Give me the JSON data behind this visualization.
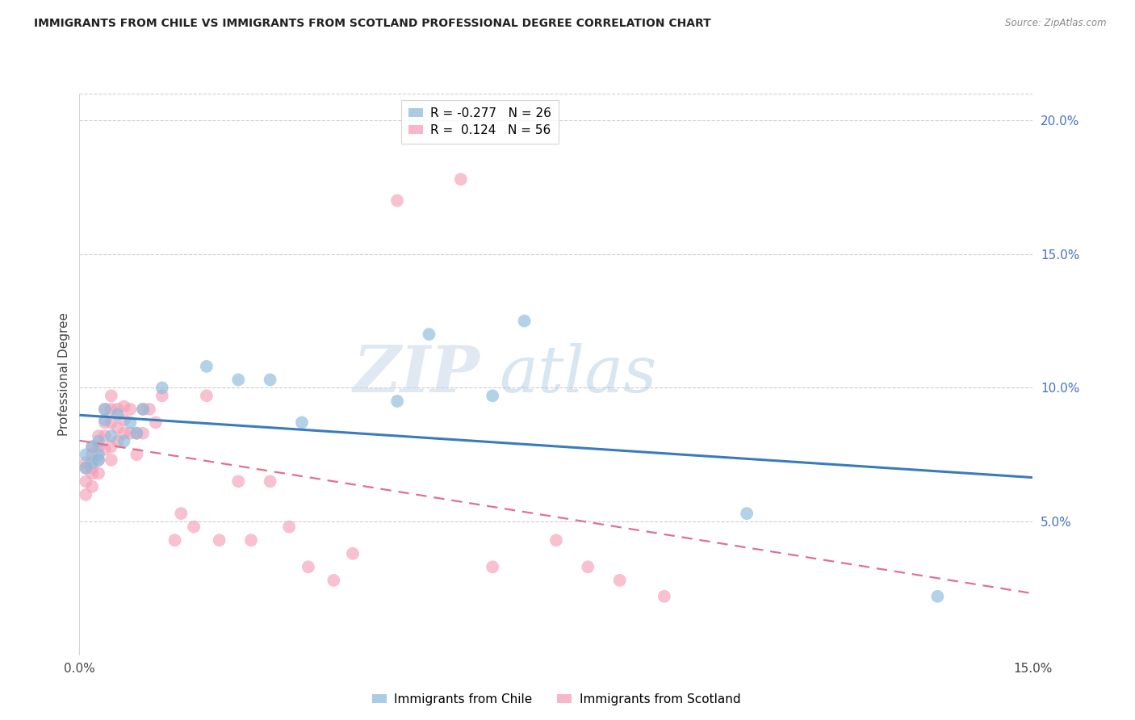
{
  "title": "IMMIGRANTS FROM CHILE VS IMMIGRANTS FROM SCOTLAND PROFESSIONAL DEGREE CORRELATION CHART",
  "source": "Source: ZipAtlas.com",
  "ylabel": "Professional Degree",
  "legend_chile": "Immigrants from Chile",
  "legend_scotland": "Immigrants from Scotland",
  "chile_R": -0.277,
  "chile_N": 26,
  "scotland_R": 0.124,
  "scotland_N": 56,
  "xlim": [
    0,
    0.15
  ],
  "ylim": [
    0,
    0.21
  ],
  "right_yticks": [
    0.05,
    0.1,
    0.15,
    0.2
  ],
  "right_yticklabels": [
    "5.0%",
    "10.0%",
    "15.0%",
    "20.0%"
  ],
  "chile_color": "#8abbdb",
  "scotland_color": "#f4a0b8",
  "chile_line_color": "#3a7bbf",
  "scotland_line_color": "#e07090",
  "watermark_zip": "ZIP",
  "watermark_atlas": "atlas",
  "chile_x": [
    0.001,
    0.001,
    0.002,
    0.002,
    0.003,
    0.003,
    0.003,
    0.004,
    0.004,
    0.005,
    0.006,
    0.007,
    0.008,
    0.009,
    0.01,
    0.013,
    0.02,
    0.025,
    0.03,
    0.035,
    0.05,
    0.055,
    0.065,
    0.07,
    0.105,
    0.135
  ],
  "chile_y": [
    0.07,
    0.075,
    0.072,
    0.078,
    0.075,
    0.08,
    0.073,
    0.088,
    0.092,
    0.082,
    0.09,
    0.08,
    0.087,
    0.083,
    0.092,
    0.1,
    0.108,
    0.103,
    0.103,
    0.087,
    0.095,
    0.12,
    0.097,
    0.125,
    0.053,
    0.022
  ],
  "scotland_x": [
    0.001,
    0.001,
    0.001,
    0.001,
    0.002,
    0.002,
    0.002,
    0.002,
    0.002,
    0.003,
    0.003,
    0.003,
    0.003,
    0.004,
    0.004,
    0.004,
    0.004,
    0.005,
    0.005,
    0.005,
    0.005,
    0.005,
    0.006,
    0.006,
    0.006,
    0.007,
    0.007,
    0.007,
    0.008,
    0.008,
    0.009,
    0.009,
    0.01,
    0.01,
    0.011,
    0.012,
    0.013,
    0.015,
    0.016,
    0.018,
    0.02,
    0.022,
    0.025,
    0.027,
    0.03,
    0.033,
    0.036,
    0.04,
    0.043,
    0.05,
    0.06,
    0.065,
    0.075,
    0.08,
    0.085,
    0.092
  ],
  "scotland_y": [
    0.065,
    0.07,
    0.072,
    0.06,
    0.075,
    0.07,
    0.078,
    0.068,
    0.063,
    0.082,
    0.078,
    0.073,
    0.068,
    0.092,
    0.087,
    0.082,
    0.077,
    0.097,
    0.092,
    0.087,
    0.078,
    0.073,
    0.092,
    0.085,
    0.08,
    0.093,
    0.088,
    0.083,
    0.092,
    0.083,
    0.083,
    0.075,
    0.092,
    0.083,
    0.092,
    0.087,
    0.097,
    0.043,
    0.053,
    0.048,
    0.097,
    0.043,
    0.065,
    0.043,
    0.065,
    0.048,
    0.033,
    0.028,
    0.038,
    0.17,
    0.178,
    0.033,
    0.043,
    0.033,
    0.028,
    0.022
  ]
}
